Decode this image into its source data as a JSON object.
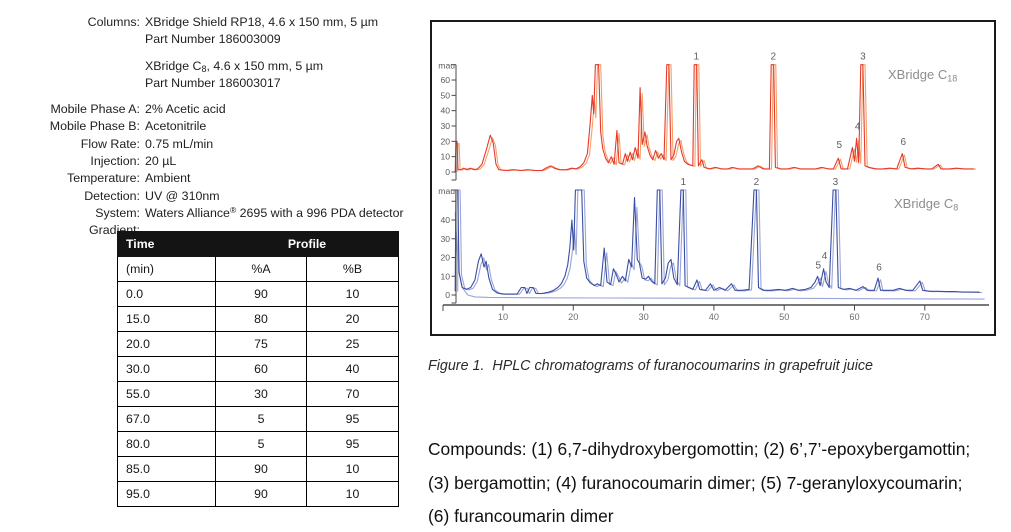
{
  "method": {
    "rows": [
      {
        "label": "Columns:",
        "gap": true,
        "lines": [
          [
            {
              "t": "XBridge Shield RP18, 4.6 x 150 mm, 5 µm"
            }
          ],
          [
            {
              "t": "Part Number 186003009"
            }
          ]
        ]
      },
      {
        "label": "",
        "gap": true,
        "lines": [
          [
            {
              "t": "XBridge C"
            },
            {
              "sub": "8"
            },
            {
              "t": ", 4.6 x 150 mm, 5 µm"
            }
          ],
          [
            {
              "t": "Part Number 186003017"
            }
          ]
        ]
      },
      {
        "label": "Mobile Phase A:",
        "lines": [
          [
            {
              "t": "2% Acetic acid"
            }
          ]
        ]
      },
      {
        "label": "Mobile Phase B:",
        "lines": [
          [
            {
              "t": "Acetonitrile"
            }
          ]
        ]
      },
      {
        "label": "Flow Rate:",
        "lines": [
          [
            {
              "t": "0.75 mL/min"
            }
          ]
        ]
      },
      {
        "label": "Injection:",
        "lines": [
          [
            {
              "t": "20 µL"
            }
          ]
        ]
      },
      {
        "label": "Temperature:",
        "lines": [
          [
            {
              "t": "Ambient"
            }
          ]
        ]
      },
      {
        "label": "Detection:",
        "lines": [
          [
            {
              "t": "UV @ 310nm"
            }
          ]
        ]
      },
      {
        "label": "System:",
        "lines": [
          [
            {
              "t": "Waters Alliance"
            },
            {
              "sup": "®"
            },
            {
              "t": " 2695 with a 996 PDA detector"
            }
          ]
        ]
      },
      {
        "label": "Gradient:",
        "lines": [
          []
        ]
      }
    ]
  },
  "gradient_table": {
    "header_col1": "Time",
    "header_col2": "Profile",
    "subheader": [
      "(min)",
      "%A",
      "%B"
    ],
    "rows": [
      [
        "0.0",
        "90",
        "10"
      ],
      [
        "15.0",
        "80",
        "20"
      ],
      [
        "20.0",
        "75",
        "25"
      ],
      [
        "30.0",
        "60",
        "40"
      ],
      [
        "55.0",
        "30",
        "70"
      ],
      [
        "67.0",
        "5",
        "95"
      ],
      [
        "80.0",
        "5",
        "95"
      ],
      [
        "85.0",
        "90",
        "10"
      ],
      [
        "95.0",
        "90",
        "10"
      ]
    ]
  },
  "figure": {
    "caption": "Figure 1.  HPLC chromatograms of furanocoumarins in grapefruit juice"
  },
  "compounds": {
    "lines": [
      "Compounds: (1) 6,7-dihydroxybergomottin; (2) 6’,7’-epoxybergamottin;",
      "(3) bergamottin; (4) furanocoumarin dimer; (5) 7-geranyloxycoumarin;",
      "(6) furancoumarin dimer"
    ]
  },
  "chart_data": [
    {
      "id": "c18",
      "type": "line",
      "title": "XBridge C",
      "title_sub": "18",
      "ylabel": "mau",
      "xlabel": "",
      "x_ticks": [
        10,
        20,
        30,
        40,
        50,
        60,
        70
      ],
      "xlim": [
        3,
        79
      ],
      "yticks": [
        0,
        10,
        20,
        30,
        40,
        50,
        60
      ],
      "yticks_unlabeled": [],
      "ylim": [
        0,
        70
      ],
      "clip": 70,
      "color_primary": "#e6392c",
      "color_secondary": "#f5a06a",
      "secondary": {
        "dt": 0.3,
        "gain": 0.93
      },
      "peaks": [
        {
          "n": "1",
          "t": 37.35
        },
        {
          "n": "2",
          "t": 48.3
        },
        {
          "n": "3",
          "t": 61.05
        },
        {
          "n": "4",
          "t": 60.3,
          "v": 25
        },
        {
          "n": "5",
          "t": 57.7,
          "v": 13
        },
        {
          "n": "6",
          "t": 66.8,
          "v": 15
        }
      ],
      "points": [
        [
          3.2,
          0
        ],
        [
          3.3,
          20
        ],
        [
          3.45,
          20
        ],
        [
          3.6,
          1.5
        ],
        [
          4,
          1.5
        ],
        [
          4.4,
          2.5
        ],
        [
          4.8,
          1.5
        ],
        [
          5.4,
          2.5
        ],
        [
          5.8,
          1.5
        ],
        [
          6.4,
          2
        ],
        [
          7,
          5
        ],
        [
          7.6,
          14
        ],
        [
          8.2,
          24
        ],
        [
          8.6,
          19
        ],
        [
          9,
          5
        ],
        [
          9.4,
          1.5
        ],
        [
          10.5,
          1
        ],
        [
          11.5,
          1.5
        ],
        [
          12.5,
          1
        ],
        [
          13.5,
          1.5
        ],
        [
          14.5,
          1
        ],
        [
          15.5,
          1
        ],
        [
          16.3,
          3
        ],
        [
          16.8,
          4
        ],
        [
          17.3,
          2.5
        ],
        [
          18,
          1.5
        ],
        [
          19,
          1.5
        ],
        [
          19.8,
          2.5
        ],
        [
          20.4,
          2
        ],
        [
          21,
          3.5
        ],
        [
          21.5,
          6
        ],
        [
          22,
          12
        ],
        [
          22.4,
          32
        ],
        [
          22.7,
          50
        ],
        [
          22.9,
          38
        ],
        [
          23.15,
          70
        ],
        [
          23.6,
          70
        ],
        [
          23.9,
          26
        ],
        [
          24.2,
          15
        ],
        [
          24.6,
          9
        ],
        [
          25,
          6
        ],
        [
          25.4,
          10
        ],
        [
          25.8,
          5
        ],
        [
          26.2,
          27
        ],
        [
          26.5,
          6
        ],
        [
          27,
          5
        ],
        [
          27.4,
          12
        ],
        [
          27.7,
          7
        ],
        [
          28.1,
          13
        ],
        [
          28.4,
          8
        ],
        [
          28.8,
          16
        ],
        [
          29.2,
          9
        ],
        [
          29.5,
          55
        ],
        [
          29.8,
          18
        ],
        [
          30.2,
          26
        ],
        [
          30.5,
          17
        ],
        [
          30.9,
          11
        ],
        [
          31.3,
          8
        ],
        [
          31.7,
          14
        ],
        [
          32.1,
          9
        ],
        [
          32.5,
          12
        ],
        [
          32.9,
          8
        ],
        [
          33.3,
          70
        ],
        [
          33.6,
          70
        ],
        [
          33.9,
          8
        ],
        [
          34.3,
          11
        ],
        [
          34.7,
          20
        ],
        [
          35,
          22
        ],
        [
          35.4,
          13
        ],
        [
          35.8,
          7
        ],
        [
          36.3,
          5
        ],
        [
          37,
          4
        ],
        [
          37.2,
          70
        ],
        [
          37.55,
          70
        ],
        [
          37.8,
          4
        ],
        [
          38.3,
          8
        ],
        [
          38.6,
          3
        ],
        [
          39.3,
          2
        ],
        [
          40.2,
          3
        ],
        [
          41,
          2
        ],
        [
          42,
          2
        ],
        [
          42.6,
          3
        ],
        [
          43.4,
          2
        ],
        [
          44.5,
          2
        ],
        [
          45.5,
          2
        ],
        [
          46.3,
          4
        ],
        [
          47,
          2
        ],
        [
          47.9,
          2
        ],
        [
          48.15,
          70
        ],
        [
          48.5,
          70
        ],
        [
          48.75,
          3
        ],
        [
          49.4,
          2
        ],
        [
          50.5,
          2
        ],
        [
          51.4,
          3
        ],
        [
          52.2,
          2
        ],
        [
          53.5,
          2
        ],
        [
          54.5,
          2
        ],
        [
          55.3,
          3
        ],
        [
          56.2,
          2
        ],
        [
          57,
          2
        ],
        [
          57.7,
          9
        ],
        [
          58.1,
          2
        ],
        [
          59,
          2
        ],
        [
          59.7,
          16
        ],
        [
          60,
          7
        ],
        [
          60.3,
          22
        ],
        [
          60.6,
          6
        ],
        [
          60.9,
          70
        ],
        [
          61.2,
          70
        ],
        [
          61.5,
          4
        ],
        [
          62,
          3
        ],
        [
          63,
          2
        ],
        [
          64,
          2
        ],
        [
          65,
          2.5
        ],
        [
          66,
          2
        ],
        [
          66.8,
          12
        ],
        [
          67.2,
          3
        ],
        [
          68,
          2
        ],
        [
          69,
          2.5
        ],
        [
          70,
          2
        ],
        [
          71,
          2
        ],
        [
          71.9,
          5
        ],
        [
          72.3,
          2
        ],
        [
          73.5,
          2
        ],
        [
          74.5,
          2.5
        ],
        [
          75.5,
          2
        ],
        [
          76.5,
          2
        ],
        [
          77,
          2
        ]
      ]
    },
    {
      "id": "c8",
      "type": "line",
      "title": "XBridge C",
      "title_sub": "8",
      "ylabel": "mau",
      "xlabel": "",
      "x_ticks": [
        10,
        20,
        30,
        40,
        50,
        60,
        70
      ],
      "xlim": [
        3,
        79
      ],
      "yticks": [
        0,
        10,
        20,
        30,
        40
      ],
      "yticks_unlabeled": [
        50
      ],
      "ylim": [
        0,
        56
      ],
      "clip": 56,
      "color_primary": "#3a4ea3",
      "color_secondary": "#9aa4d8",
      "secondary": {
        "dt": 0.35,
        "gain": 0.9
      },
      "baseline_series": {
        "points": [
          [
            3.2,
            44
          ],
          [
            3.6,
            15
          ],
          [
            4.2,
            4
          ],
          [
            5,
            0
          ],
          [
            6,
            -1
          ],
          [
            8,
            -1.3
          ],
          [
            15,
            -1.5
          ],
          [
            25,
            -1.6
          ],
          [
            35,
            -1.7
          ],
          [
            45,
            -1.7
          ],
          [
            55,
            -1.8
          ],
          [
            65,
            -2
          ],
          [
            78.5,
            -2.2
          ]
        ]
      },
      "peaks": [
        {
          "n": "1",
          "t": 35.5
        },
        {
          "n": "2",
          "t": 45.9
        },
        {
          "n": "3",
          "t": 57.15
        },
        {
          "n": "4",
          "t": 55.6,
          "v": 17
        },
        {
          "n": "5",
          "t": 54.7,
          "v": 12
        },
        {
          "n": "6",
          "t": 63.35,
          "v": 11
        }
      ],
      "points": [
        [
          3.2,
          2
        ],
        [
          3.3,
          56
        ],
        [
          3.55,
          56
        ],
        [
          3.75,
          12
        ],
        [
          4.2,
          4
        ],
        [
          4.8,
          3
        ],
        [
          5.4,
          4
        ],
        [
          6,
          8
        ],
        [
          6.5,
          18
        ],
        [
          6.9,
          22
        ],
        [
          7.3,
          15
        ],
        [
          7.6,
          18
        ],
        [
          8,
          9
        ],
        [
          8.5,
          3
        ],
        [
          9.2,
          1
        ],
        [
          10,
          0.5
        ],
        [
          11,
          0.5
        ],
        [
          12,
          0.5
        ],
        [
          12.6,
          4
        ],
        [
          13.1,
          4
        ],
        [
          13.4,
          0.8
        ],
        [
          13.8,
          4
        ],
        [
          14.3,
          4
        ],
        [
          14.7,
          0.8
        ],
        [
          15.5,
          0.8
        ],
        [
          16.5,
          1.5
        ],
        [
          17.2,
          2.5
        ],
        [
          17.8,
          4
        ],
        [
          18.3,
          6
        ],
        [
          18.8,
          10
        ],
        [
          19.2,
          16
        ],
        [
          19.5,
          25
        ],
        [
          19.8,
          40
        ],
        [
          20.05,
          24
        ],
        [
          20.3,
          56
        ],
        [
          21.2,
          56
        ],
        [
          21.5,
          18
        ],
        [
          21.9,
          9
        ],
        [
          22.4,
          6.5
        ],
        [
          23,
          5
        ],
        [
          23.4,
          6
        ],
        [
          23.9,
          5
        ],
        [
          24.4,
          25
        ],
        [
          24.8,
          7
        ],
        [
          25.3,
          5.5
        ],
        [
          25.7,
          14
        ],
        [
          26.1,
          11
        ],
        [
          26.5,
          7
        ],
        [
          27,
          10
        ],
        [
          27.4,
          7.5
        ],
        [
          27.9,
          19
        ],
        [
          28.3,
          15
        ],
        [
          28.7,
          52
        ],
        [
          29.1,
          19
        ],
        [
          29.4,
          17
        ],
        [
          29.8,
          9
        ],
        [
          30.3,
          8.5
        ],
        [
          30.7,
          10
        ],
        [
          31.1,
          7.5
        ],
        [
          31.6,
          6
        ],
        [
          31.95,
          56
        ],
        [
          32.3,
          56
        ],
        [
          32.6,
          6
        ],
        [
          33.1,
          9
        ],
        [
          33.5,
          17
        ],
        [
          33.9,
          19
        ],
        [
          34.3,
          9
        ],
        [
          34.8,
          5.5
        ],
        [
          35.3,
          56
        ],
        [
          35.65,
          56
        ],
        [
          35.9,
          5
        ],
        [
          36.4,
          4
        ],
        [
          37,
          3
        ],
        [
          37.6,
          8
        ],
        [
          38,
          3
        ],
        [
          38.8,
          2.5
        ],
        [
          39.5,
          6
        ],
        [
          40,
          2.5
        ],
        [
          40.8,
          4
        ],
        [
          41.6,
          2.5
        ],
        [
          42.5,
          6
        ],
        [
          43,
          2.5
        ],
        [
          44,
          2.5
        ],
        [
          45,
          3
        ],
        [
          45.7,
          56
        ],
        [
          46.05,
          56
        ],
        [
          46.35,
          4
        ],
        [
          47,
          2.5
        ],
        [
          48,
          2.5
        ],
        [
          49.2,
          3
        ],
        [
          50.2,
          2.5
        ],
        [
          51.2,
          3.5
        ],
        [
          52,
          2.5
        ],
        [
          53,
          3
        ],
        [
          53.8,
          4
        ],
        [
          54.4,
          7
        ],
        [
          54.75,
          10
        ],
        [
          55.1,
          5
        ],
        [
          55.6,
          14
        ],
        [
          55.95,
          7
        ],
        [
          56.4,
          4
        ],
        [
          56.95,
          56
        ],
        [
          57.35,
          56
        ],
        [
          57.7,
          4
        ],
        [
          58.4,
          3
        ],
        [
          59.3,
          3.5
        ],
        [
          60.2,
          2.5
        ],
        [
          61.2,
          4.5
        ],
        [
          61.8,
          2.5
        ],
        [
          62.8,
          2.5
        ],
        [
          63.35,
          9
        ],
        [
          63.7,
          2.5
        ],
        [
          64.5,
          2.5
        ],
        [
          65.5,
          2.5
        ],
        [
          66.4,
          3.5
        ],
        [
          67.3,
          2.5
        ],
        [
          68.3,
          2.5
        ],
        [
          69.3,
          7.5
        ],
        [
          69.7,
          2.5
        ],
        [
          70.7,
          2
        ],
        [
          71.8,
          2
        ],
        [
          73,
          1.8
        ],
        [
          74.2,
          1.8
        ],
        [
          75.4,
          1.6
        ],
        [
          76.6,
          1.6
        ],
        [
          77.8,
          1.5
        ]
      ]
    }
  ]
}
